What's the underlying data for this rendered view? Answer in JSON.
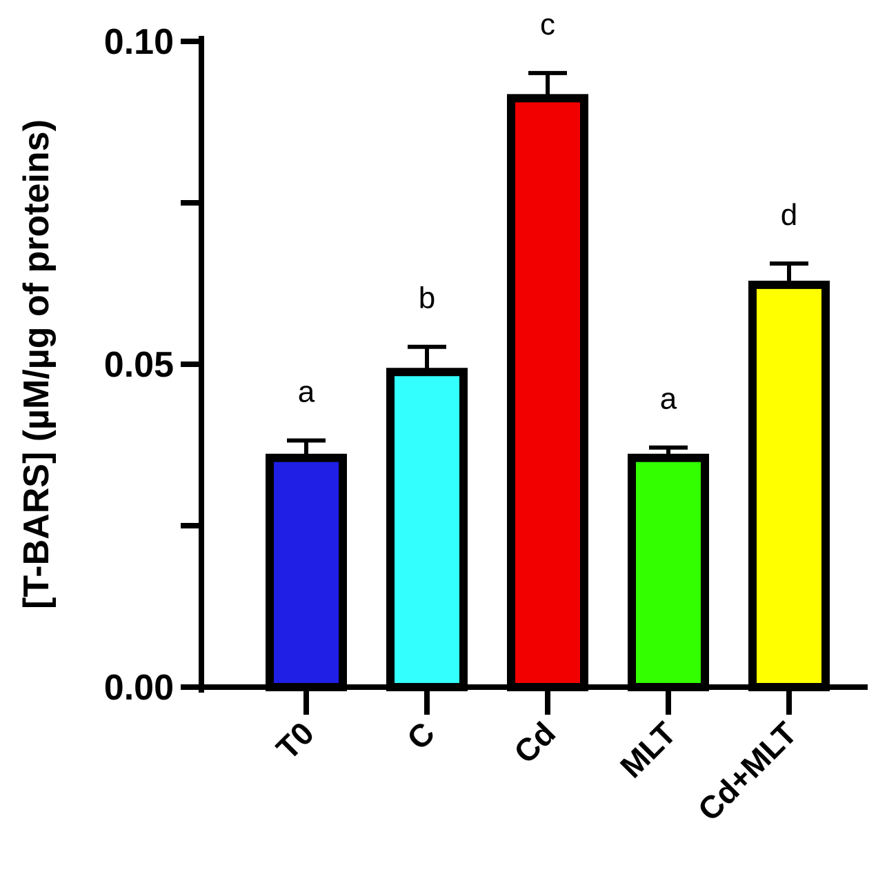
{
  "chart_data": {
    "type": "bar",
    "title": "",
    "xlabel": "",
    "ylabel": "[T-BARS] (µM/µg of proteins)",
    "ylim": [
      0,
      0.1
    ],
    "y_ticks": [
      0.0,
      0.025,
      0.05,
      0.075,
      0.1
    ],
    "y_tick_labels": [
      "0.00",
      "",
      "0.05",
      "",
      "0.10"
    ],
    "categories": [
      "T0",
      "C",
      "Cd",
      "MLT",
      "Cd+MLT"
    ],
    "values": [
      0.0355,
      0.0488,
      0.0912,
      0.0355,
      0.0623
    ],
    "errors": [
      0.0027,
      0.0039,
      0.0039,
      0.0016,
      0.0033
    ],
    "significance": [
      "a",
      "b",
      "c",
      "a",
      "d"
    ],
    "colors": [
      "#1f1fe6",
      "#33ffff",
      "#f20000",
      "#33ff00",
      "#ffff00"
    ],
    "bar_edge_color": "#000000",
    "grid": false,
    "legend": "none"
  }
}
